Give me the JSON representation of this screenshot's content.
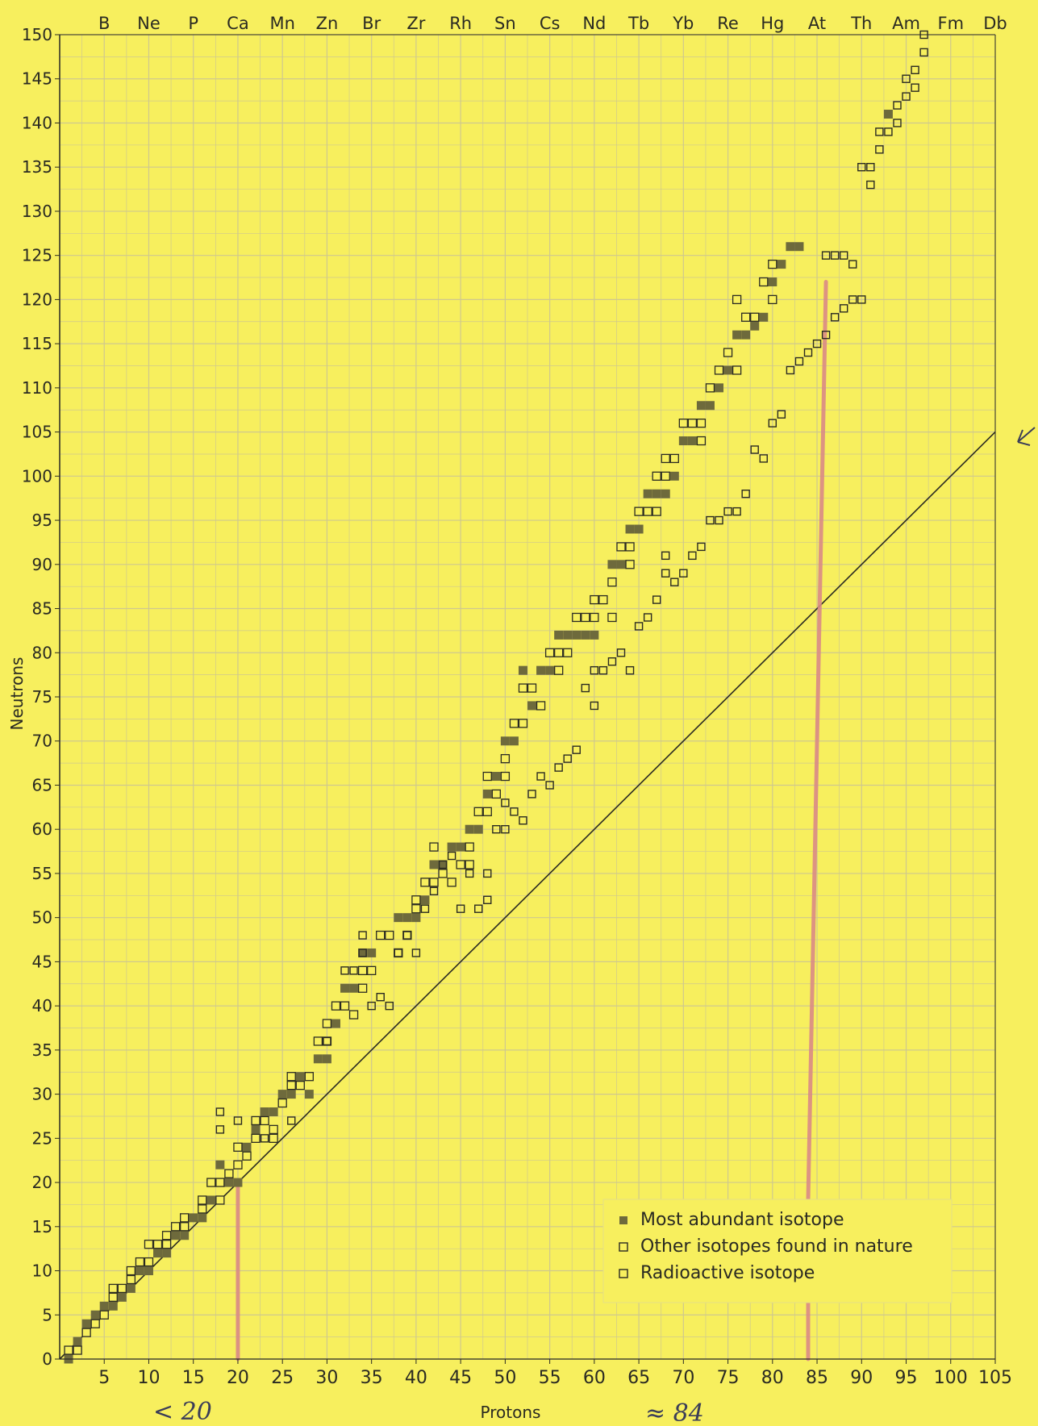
{
  "chart_data": {
    "type": "scatter",
    "xlabel": "Protons",
    "ylabel": "Neutrons",
    "xlim": [
      0,
      105
    ],
    "ylim": [
      0,
      150
    ],
    "grid": true,
    "x_ticks": [
      "5",
      "10",
      "15",
      "20",
      "25",
      "30",
      "35",
      "40",
      "45",
      "50",
      "55",
      "60",
      "65",
      "70",
      "75",
      "80",
      "85",
      "90",
      "95",
      "100",
      "105"
    ],
    "y_ticks": [
      "0",
      "5",
      "10",
      "15",
      "20",
      "25",
      "30",
      "35",
      "40",
      "45",
      "50",
      "55",
      "60",
      "65",
      "70",
      "75",
      "80",
      "85",
      "90",
      "95",
      "100",
      "105",
      "110",
      "115",
      "120",
      "125",
      "130",
      "135",
      "140",
      "145",
      "150"
    ],
    "top_element_labels": [
      "B",
      "Ne",
      "P",
      "Ca",
      "Mn",
      "Zn",
      "Br",
      "Zr",
      "Rh",
      "Sn",
      "Cs",
      "Nd",
      "Tb",
      "Yb",
      "Re",
      "Hg",
      "At",
      "Th",
      "Am",
      "Fm",
      "Db"
    ],
    "legend": {
      "position": "bottom-right",
      "entries": [
        "Most abundant isotope",
        "Other isotopes found in nature",
        "Radioactive isotope"
      ]
    },
    "reference_line": {
      "from": [
        0,
        0
      ],
      "to": [
        105,
        105
      ]
    },
    "highlight_lines": [
      {
        "color": "#d98a86",
        "points": [
          [
            20,
            0
          ],
          [
            20,
            20
          ]
        ]
      },
      {
        "color": "#d98a86",
        "points": [
          [
            84,
            0
          ],
          [
            84,
            7
          ]
        ]
      },
      {
        "color": "#d98a86",
        "points": [
          [
            84,
            18
          ],
          [
            86,
            122
          ]
        ]
      }
    ],
    "series": [
      {
        "name": "Most abundant isotope",
        "points": [
          [
            1,
            0
          ],
          [
            2,
            2
          ],
          [
            3,
            4
          ],
          [
            4,
            5
          ],
          [
            5,
            6
          ],
          [
            6,
            6
          ],
          [
            7,
            7
          ],
          [
            8,
            8
          ],
          [
            9,
            10
          ],
          [
            10,
            10
          ],
          [
            11,
            12
          ],
          [
            12,
            12
          ],
          [
            13,
            14
          ],
          [
            14,
            14
          ],
          [
            15,
            16
          ],
          [
            16,
            16
          ],
          [
            17,
            18
          ],
          [
            18,
            22
          ],
          [
            19,
            20
          ],
          [
            20,
            20
          ],
          [
            21,
            24
          ],
          [
            22,
            26
          ],
          [
            23,
            28
          ],
          [
            24,
            28
          ],
          [
            25,
            30
          ],
          [
            26,
            30
          ],
          [
            27,
            32
          ],
          [
            28,
            30
          ],
          [
            29,
            34
          ],
          [
            30,
            34
          ],
          [
            31,
            38
          ],
          [
            32,
            42
          ],
          [
            33,
            42
          ],
          [
            34,
            46
          ],
          [
            35,
            46
          ],
          [
            36,
            48
          ],
          [
            37,
            48
          ],
          [
            38,
            50
          ],
          [
            39,
            50
          ],
          [
            40,
            50
          ],
          [
            41,
            52
          ],
          [
            42,
            56
          ],
          [
            43,
            56
          ],
          [
            44,
            58
          ],
          [
            45,
            58
          ],
          [
            46,
            60
          ],
          [
            47,
            60
          ],
          [
            48,
            64
          ],
          [
            49,
            66
          ],
          [
            50,
            70
          ],
          [
            51,
            70
          ],
          [
            52,
            78
          ],
          [
            53,
            74
          ],
          [
            54,
            78
          ],
          [
            55,
            78
          ],
          [
            56,
            82
          ],
          [
            57,
            82
          ],
          [
            58,
            82
          ],
          [
            59,
            82
          ],
          [
            60,
            82
          ],
          [
            61,
            86
          ],
          [
            62,
            90
          ],
          [
            63,
            90
          ],
          [
            64,
            94
          ],
          [
            65,
            94
          ],
          [
            66,
            98
          ],
          [
            67,
            98
          ],
          [
            68,
            98
          ],
          [
            69,
            100
          ],
          [
            70,
            104
          ],
          [
            71,
            104
          ],
          [
            72,
            108
          ],
          [
            73,
            108
          ],
          [
            74,
            110
          ],
          [
            75,
            112
          ],
          [
            76,
            116
          ],
          [
            77,
            116
          ],
          [
            78,
            117
          ],
          [
            79,
            118
          ],
          [
            80,
            122
          ],
          [
            81,
            124
          ],
          [
            82,
            126
          ],
          [
            83,
            126
          ],
          [
            93,
            141
          ]
        ]
      },
      {
        "name": "Other isotopes found in nature",
        "points": [
          [
            1,
            1
          ],
          [
            2,
            1
          ],
          [
            3,
            3
          ],
          [
            4,
            4
          ],
          [
            5,
            5
          ],
          [
            6,
            7
          ],
          [
            6,
            8
          ],
          [
            7,
            8
          ],
          [
            8,
            9
          ],
          [
            8,
            10
          ],
          [
            9,
            11
          ],
          [
            10,
            11
          ],
          [
            10,
            13
          ],
          [
            11,
            13
          ],
          [
            12,
            13
          ],
          [
            12,
            14
          ],
          [
            13,
            15
          ],
          [
            14,
            15
          ],
          [
            14,
            16
          ],
          [
            16,
            17
          ],
          [
            16,
            18
          ],
          [
            17,
            20
          ],
          [
            18,
            20
          ],
          [
            18,
            18
          ],
          [
            19,
            21
          ],
          [
            20,
            22
          ],
          [
            20,
            24
          ],
          [
            21,
            23
          ],
          [
            22,
            25
          ],
          [
            22,
            27
          ],
          [
            23,
            27
          ],
          [
            24,
            25
          ],
          [
            24,
            26
          ],
          [
            25,
            29
          ],
          [
            26,
            31
          ],
          [
            26,
            32
          ],
          [
            27,
            31
          ],
          [
            28,
            32
          ],
          [
            29,
            36
          ],
          [
            30,
            36
          ],
          [
            30,
            38
          ],
          [
            31,
            40
          ],
          [
            32,
            40
          ],
          [
            33,
            39
          ],
          [
            34,
            42
          ],
          [
            34,
            44
          ],
          [
            35,
            44
          ],
          [
            36,
            48
          ],
          [
            37,
            48
          ],
          [
            38,
            46
          ],
          [
            39,
            48
          ],
          [
            40,
            51
          ],
          [
            40,
            52
          ],
          [
            41,
            54
          ],
          [
            42,
            54
          ],
          [
            42,
            58
          ],
          [
            43,
            55
          ],
          [
            44,
            54
          ],
          [
            45,
            56
          ],
          [
            46,
            56
          ],
          [
            46,
            58
          ],
          [
            47,
            62
          ],
          [
            48,
            62
          ],
          [
            48,
            66
          ],
          [
            49,
            64
          ],
          [
            50,
            66
          ],
          [
            50,
            68
          ],
          [
            51,
            72
          ],
          [
            52,
            72
          ],
          [
            52,
            76
          ],
          [
            53,
            76
          ],
          [
            54,
            74
          ],
          [
            55,
            80
          ],
          [
            56,
            78
          ],
          [
            56,
            80
          ],
          [
            57,
            80
          ],
          [
            58,
            84
          ],
          [
            59,
            84
          ],
          [
            60,
            84
          ],
          [
            60,
            86
          ],
          [
            61,
            86
          ],
          [
            62,
            84
          ],
          [
            62,
            88
          ],
          [
            63,
            92
          ],
          [
            64,
            90
          ],
          [
            64,
            92
          ],
          [
            65,
            96
          ],
          [
            66,
            96
          ],
          [
            67,
            96
          ],
          [
            67,
            100
          ],
          [
            68,
            100
          ],
          [
            68,
            102
          ],
          [
            69,
            102
          ],
          [
            70,
            106
          ],
          [
            71,
            106
          ],
          [
            72,
            104
          ],
          [
            72,
            106
          ],
          [
            73,
            110
          ],
          [
            74,
            112
          ],
          [
            75,
            114
          ],
          [
            76,
            112
          ],
          [
            76,
            120
          ],
          [
            77,
            118
          ],
          [
            78,
            118
          ],
          [
            79,
            122
          ],
          [
            80,
            120
          ],
          [
            80,
            124
          ]
        ]
      },
      {
        "name": "Radioactive isotope",
        "points": [
          [
            18,
            26
          ],
          [
            18,
            28
          ],
          [
            20,
            27
          ],
          [
            23,
            25
          ],
          [
            26,
            27
          ],
          [
            30,
            36
          ],
          [
            32,
            44
          ],
          [
            33,
            44
          ],
          [
            34,
            46
          ],
          [
            34,
            48
          ],
          [
            35,
            40
          ],
          [
            36,
            41
          ],
          [
            37,
            40
          ],
          [
            38,
            46
          ],
          [
            39,
            48
          ],
          [
            40,
            46
          ],
          [
            41,
            51
          ],
          [
            42,
            53
          ],
          [
            43,
            56
          ],
          [
            44,
            57
          ],
          [
            45,
            51
          ],
          [
            46,
            55
          ],
          [
            47,
            51
          ],
          [
            48,
            52
          ],
          [
            48,
            55
          ],
          [
            49,
            60
          ],
          [
            50,
            63
          ],
          [
            50,
            60
          ],
          [
            51,
            62
          ],
          [
            52,
            61
          ],
          [
            53,
            64
          ],
          [
            54,
            66
          ],
          [
            55,
            65
          ],
          [
            56,
            67
          ],
          [
            57,
            68
          ],
          [
            58,
            69
          ],
          [
            59,
            76
          ],
          [
            60,
            74
          ],
          [
            60,
            78
          ],
          [
            61,
            78
          ],
          [
            62,
            79
          ],
          [
            63,
            80
          ],
          [
            64,
            78
          ],
          [
            65,
            83
          ],
          [
            66,
            84
          ],
          [
            67,
            86
          ],
          [
            68,
            89
          ],
          [
            68,
            91
          ],
          [
            69,
            88
          ],
          [
            70,
            89
          ],
          [
            71,
            91
          ],
          [
            72,
            92
          ],
          [
            73,
            95
          ],
          [
            74,
            95
          ],
          [
            75,
            96
          ],
          [
            76,
            96
          ],
          [
            77,
            98
          ],
          [
            78,
            103
          ],
          [
            79,
            102
          ],
          [
            80,
            106
          ],
          [
            81,
            107
          ],
          [
            82,
            112
          ],
          [
            83,
            113
          ],
          [
            84,
            114
          ],
          [
            85,
            115
          ],
          [
            86,
            116
          ],
          [
            87,
            118
          ],
          [
            88,
            119
          ],
          [
            89,
            120
          ],
          [
            90,
            120
          ],
          [
            90,
            135
          ],
          [
            91,
            135
          ],
          [
            91,
            133
          ],
          [
            92,
            137
          ],
          [
            92,
            139
          ],
          [
            93,
            139
          ],
          [
            94,
            140
          ],
          [
            94,
            142
          ],
          [
            95,
            143
          ],
          [
            95,
            145
          ],
          [
            96,
            144
          ],
          [
            96,
            146
          ],
          [
            97,
            148
          ],
          [
            97,
            150
          ],
          [
            86,
            125
          ],
          [
            87,
            125
          ],
          [
            88,
            125
          ],
          [
            89,
            124
          ]
        ]
      }
    ],
    "annotations": [
      "< 20",
      "≈ 84"
    ],
    "colors": {
      "background": "#f7ef5e",
      "grid": "#cfc88e",
      "ink": "#2a2a22",
      "filled_marker": "#6e6a3c",
      "highlight": "#d98a86"
    }
  }
}
